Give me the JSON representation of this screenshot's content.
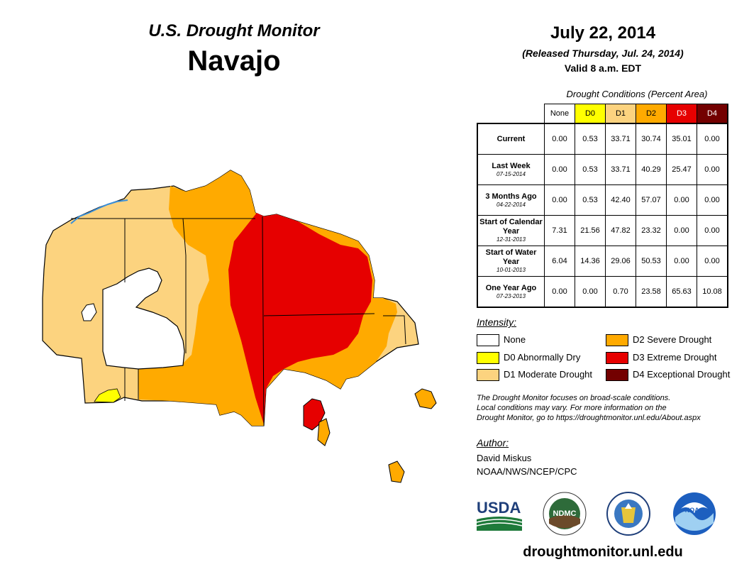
{
  "header": {
    "title": "U.S. Drought Monitor",
    "region": "Navajo",
    "date": "July 22, 2014",
    "released": "(Released Thursday, Jul. 24, 2014)",
    "valid": "Valid 8 a.m. EDT"
  },
  "table": {
    "title": "Drought Conditions (Percent Area)",
    "columns": [
      "None",
      "D0",
      "D1",
      "D2",
      "D3",
      "D4"
    ],
    "column_colors": [
      "#ffffff",
      "#ffff00",
      "#fcd37f",
      "#ffaa00",
      "#e60000",
      "#730000"
    ],
    "rows": [
      {
        "label": "Current",
        "sub": "",
        "values": [
          "0.00",
          "0.53",
          "33.71",
          "30.74",
          "35.01",
          "0.00"
        ]
      },
      {
        "label": "Last Week",
        "sub": "07-15-2014",
        "values": [
          "0.00",
          "0.53",
          "33.71",
          "40.29",
          "25.47",
          "0.00"
        ]
      },
      {
        "label": "3 Months Ago",
        "sub": "04-22-2014",
        "values": [
          "0.00",
          "0.53",
          "42.40",
          "57.07",
          "0.00",
          "0.00"
        ]
      },
      {
        "label": "Start of Calendar Year",
        "sub": "12-31-2013",
        "values": [
          "7.31",
          "21.56",
          "47.82",
          "23.32",
          "0.00",
          "0.00"
        ]
      },
      {
        "label": "Start of Water Year",
        "sub": "10-01-2013",
        "values": [
          "6.04",
          "14.36",
          "29.06",
          "50.53",
          "0.00",
          "0.00"
        ]
      },
      {
        "label": "One Year Ago",
        "sub": "07-23-2013",
        "values": [
          "0.00",
          "0.00",
          "0.70",
          "23.58",
          "65.63",
          "10.08"
        ]
      }
    ]
  },
  "legend": {
    "title": "Intensity:",
    "items": [
      {
        "label": "None",
        "color": "#ffffff"
      },
      {
        "label": "D0 Abnormally Dry",
        "color": "#ffff00"
      },
      {
        "label": "D1 Moderate Drought",
        "color": "#fcd37f"
      },
      {
        "label": "D2 Severe Drought",
        "color": "#ffaa00"
      },
      {
        "label": "D3 Extreme Drought",
        "color": "#e60000"
      },
      {
        "label": "D4 Exceptional Drought",
        "color": "#730000"
      }
    ]
  },
  "note": {
    "line1": "The Drought Monitor focuses on broad-scale conditions.",
    "line2": "Local conditions may vary. For more information on the",
    "line3": "Drought Monitor, go to https://droughtmonitor.unl.edu/About.aspx"
  },
  "author": {
    "title": "Author:",
    "name": "David Miskus",
    "org": "NOAA/NWS/NCEP/CPC"
  },
  "logos": {
    "usda": "USDA",
    "ndmc": "NDMC",
    "noaa": "NOAA"
  },
  "website": "droughtmonitor.unl.edu"
}
